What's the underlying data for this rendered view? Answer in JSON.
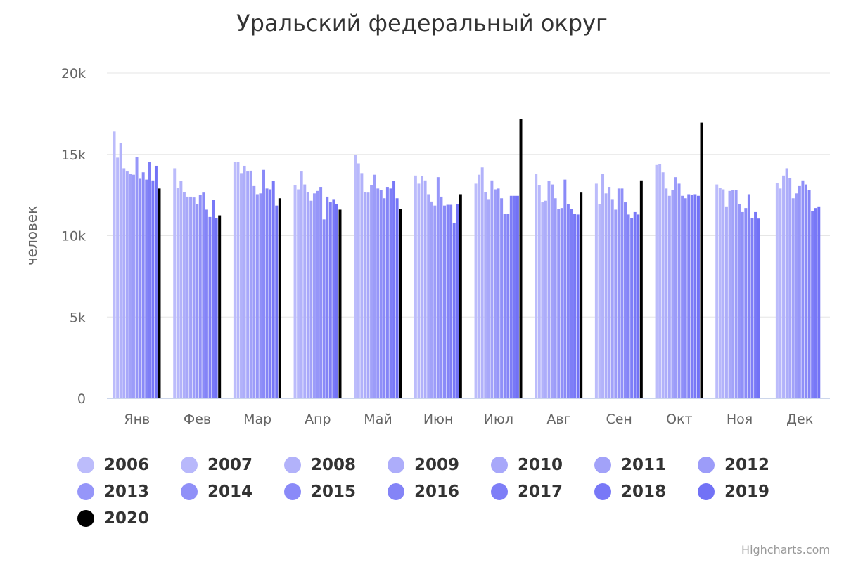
{
  "credits": "Highcharts.com",
  "chart_data": {
    "type": "bar",
    "title": "Уральский федеральный округ",
    "xlabel": "",
    "ylabel": "человек",
    "ylim": [
      0,
      20000
    ],
    "y_ticks": [
      "0",
      "5k",
      "10k",
      "15k",
      "20k"
    ],
    "y_tick_values": [
      0,
      5000,
      10000,
      15000,
      20000
    ],
    "grid": true,
    "legend_position": "bottom",
    "categories": [
      "Янв",
      "Фев",
      "Мар",
      "Апр",
      "Май",
      "Июн",
      "Июл",
      "Авг",
      "Сен",
      "Окт",
      "Ноя",
      "Дек"
    ],
    "series": [
      {
        "name": "2006",
        "color": "#bcbcfb",
        "values": [
          16400,
          14150,
          14550,
          13100,
          14950,
          13700,
          13200,
          13800,
          13200,
          14350,
          13150,
          13250
        ]
      },
      {
        "name": "2007",
        "color": "#b8b8fb",
        "values": [
          14800,
          12950,
          14550,
          12850,
          14450,
          13200,
          13750,
          13100,
          11950,
          14400,
          12950,
          12900
        ]
      },
      {
        "name": "2008",
        "color": "#b2b2fa",
        "values": [
          15700,
          13350,
          13850,
          13950,
          13850,
          13650,
          14200,
          12050,
          13800,
          13900,
          12850,
          13700
        ]
      },
      {
        "name": "2009",
        "color": "#adadfa",
        "values": [
          14150,
          12700,
          14300,
          13150,
          12700,
          13400,
          12700,
          12150,
          12600,
          12900,
          11800,
          14150
        ]
      },
      {
        "name": "2010",
        "color": "#a8a8fa",
        "values": [
          13950,
          12400,
          13950,
          12700,
          12650,
          12550,
          12250,
          13350,
          13000,
          12450,
          12750,
          13550
        ]
      },
      {
        "name": "2011",
        "color": "#a2a2f9",
        "values": [
          13800,
          12400,
          14000,
          12150,
          13100,
          12100,
          13400,
          13150,
          12250,
          12800,
          12800,
          12300
        ]
      },
      {
        "name": "2012",
        "color": "#9c9cf9",
        "values": [
          13750,
          12350,
          13050,
          12600,
          13750,
          11850,
          12850,
          12300,
          11600,
          13600,
          12800,
          12600
        ]
      },
      {
        "name": "2013",
        "color": "#9696f9",
        "values": [
          14850,
          11950,
          12550,
          12750,
          12900,
          13600,
          12900,
          11650,
          12900,
          13200,
          11950,
          13050
        ]
      },
      {
        "name": "2014",
        "color": "#9090f8",
        "values": [
          13500,
          12500,
          12600,
          13000,
          12800,
          12400,
          12300,
          11700,
          12900,
          12450,
          11450,
          13400
        ]
      },
      {
        "name": "2015",
        "color": "#8a8af8",
        "values": [
          13900,
          12650,
          14050,
          11000,
          12300,
          11850,
          11350,
          13450,
          12050,
          12300,
          11700,
          13150
        ]
      },
      {
        "name": "2016",
        "color": "#8484f7",
        "values": [
          13450,
          11600,
          12900,
          12400,
          13000,
          11900,
          11350,
          11950,
          11300,
          12550,
          12550,
          12800
        ]
      },
      {
        "name": "2017",
        "color": "#7e7ef7",
        "values": [
          14550,
          11150,
          12850,
          12050,
          12900,
          11900,
          12450,
          11650,
          11100,
          12500,
          11100,
          11500
        ]
      },
      {
        "name": "2018",
        "color": "#7878f7",
        "values": [
          13400,
          12200,
          13350,
          12250,
          13350,
          10800,
          12450,
          11350,
          11450,
          12550,
          11450,
          11700
        ]
      },
      {
        "name": "2019",
        "color": "#7272f6",
        "values": [
          14300,
          11100,
          11850,
          11950,
          12300,
          11950,
          12450,
          11300,
          11300,
          12450,
          11050,
          11800
        ]
      },
      {
        "name": "2020",
        "color": "#000000",
        "values": [
          12900,
          11250,
          12300,
          11600,
          11650,
          12550,
          17150,
          12650,
          13400,
          16950,
          0,
          0
        ]
      }
    ]
  }
}
